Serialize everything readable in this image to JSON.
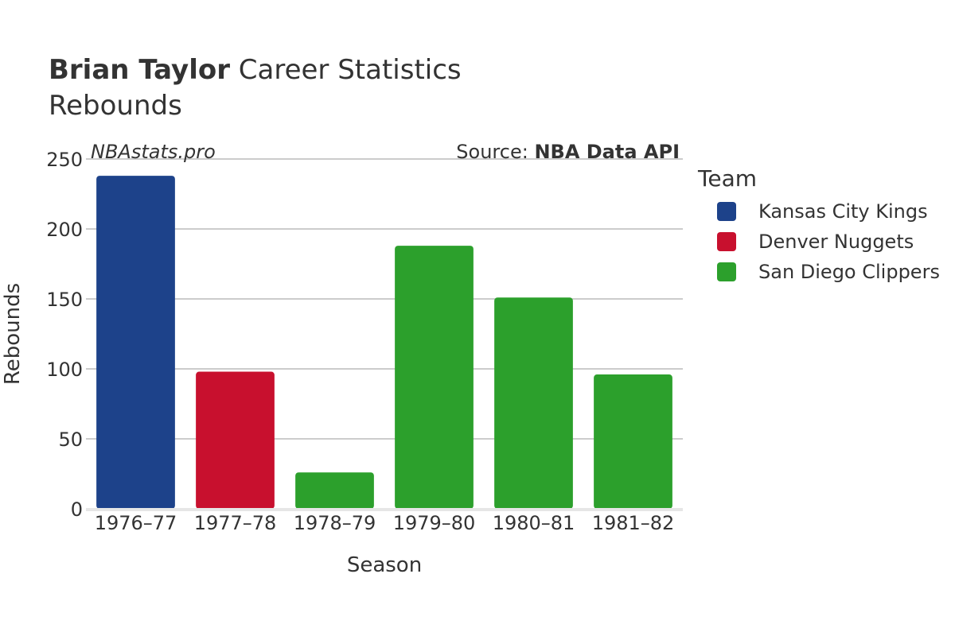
{
  "header": {
    "title_bold": "Brian Taylor",
    "title_rest": " Career Statistics",
    "subtitle": "Rebounds"
  },
  "watermark": "NBAstats.pro",
  "source": {
    "prefix": "Source: ",
    "name": "NBA Data API"
  },
  "legend": {
    "title": "Team",
    "items": [
      {
        "label": "Kansas City Kings",
        "color": "#1d428a"
      },
      {
        "label": "Denver Nuggets",
        "color": "#c8102e"
      },
      {
        "label": "San Diego Clippers",
        "color": "#2ca02c"
      }
    ]
  },
  "chart_data": {
    "type": "bar",
    "title": "Brian Taylor Career Statistics",
    "subtitle": "Rebounds",
    "xlabel": "Season",
    "ylabel": "Rebounds",
    "ylim": [
      0,
      250
    ],
    "yticks": [
      0,
      50,
      100,
      150,
      200,
      250
    ],
    "grid": true,
    "legend_position": "right",
    "categories": [
      "1976–77",
      "1977–78",
      "1978–79",
      "1979–80",
      "1980–81",
      "1981–82"
    ],
    "values": [
      238,
      98,
      26,
      188,
      151,
      96
    ],
    "teams": [
      "Kansas City Kings",
      "Denver Nuggets",
      "San Diego Clippers",
      "San Diego Clippers",
      "San Diego Clippers",
      "San Diego Clippers"
    ],
    "colors": [
      "#1d428a",
      "#c8102e",
      "#2ca02c",
      "#2ca02c",
      "#2ca02c",
      "#2ca02c"
    ]
  }
}
